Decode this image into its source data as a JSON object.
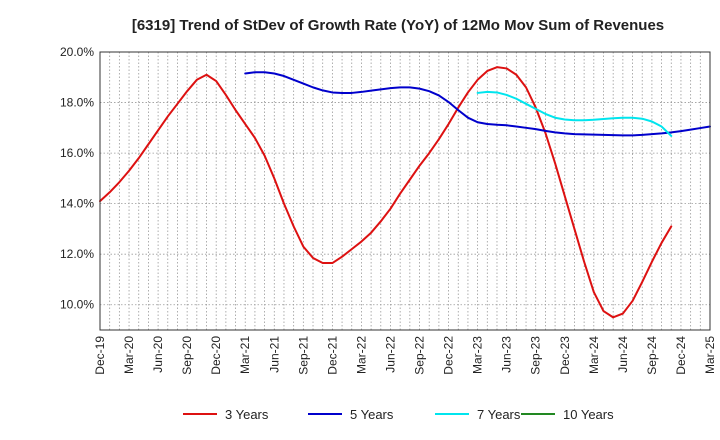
{
  "chart_data": {
    "type": "line",
    "title": "[6319]  Trend of StDev of Growth Rate (YoY) of 12Mo Mov Sum of Revenues",
    "xlabel": "",
    "ylabel": "",
    "ylim": [
      9.0,
      20.0
    ],
    "yticks": [
      10.0,
      12.0,
      14.0,
      16.0,
      18.0,
      20.0
    ],
    "ytick_labels": [
      "10.0%",
      "12.0%",
      "14.0%",
      "16.0%",
      "18.0%",
      "20.0%"
    ],
    "xtick_labels": [
      "Dec-19",
      "Mar-20",
      "Jun-20",
      "Sep-20",
      "Dec-20",
      "Mar-21",
      "Jun-21",
      "Sep-21",
      "Dec-21",
      "Mar-22",
      "Jun-22",
      "Sep-22",
      "Dec-22",
      "Mar-23",
      "Jun-23",
      "Sep-23",
      "Dec-23",
      "Mar-24",
      "Jun-24",
      "Sep-24",
      "Dec-24",
      "Mar-25"
    ],
    "grid": true,
    "legend_position": "bottom",
    "series": [
      {
        "name": "3 Years",
        "color": "#dd1111",
        "start_month": 0,
        "values": [
          14.1,
          14.45,
          14.85,
          15.3,
          15.8,
          16.35,
          16.9,
          17.45,
          17.95,
          18.45,
          18.9,
          19.1,
          18.85,
          18.3,
          17.7,
          17.15,
          16.6,
          15.9,
          15.0,
          14.0,
          13.1,
          12.3,
          11.85,
          11.65,
          11.65,
          11.9,
          12.2,
          12.5,
          12.85,
          13.3,
          13.8,
          14.4,
          14.95,
          15.5,
          16.0,
          16.55,
          17.15,
          17.8,
          18.4,
          18.9,
          19.25,
          19.4,
          19.35,
          19.1,
          18.6,
          17.8,
          16.8,
          15.6,
          14.3,
          13.0,
          11.7,
          10.5,
          9.75,
          9.5,
          9.65,
          10.15,
          10.9,
          11.7,
          12.45,
          13.1
        ]
      },
      {
        "name": "5 Years",
        "color": "#0000cc",
        "start_month": 15,
        "values": [
          19.15,
          19.2,
          19.2,
          19.15,
          19.05,
          18.9,
          18.75,
          18.6,
          18.48,
          18.4,
          18.38,
          18.38,
          18.42,
          18.47,
          18.52,
          18.57,
          18.6,
          18.6,
          18.55,
          18.45,
          18.28,
          18.02,
          17.7,
          17.4,
          17.22,
          17.15,
          17.12,
          17.1,
          17.05,
          17.0,
          16.95,
          16.88,
          16.82,
          16.78,
          16.75,
          16.74,
          16.73,
          16.72,
          16.71,
          16.7,
          16.7,
          16.72,
          16.75,
          16.78,
          16.82,
          16.87,
          16.93,
          16.99,
          17.05
        ]
      },
      {
        "name": "7 Years",
        "color": "#00e5ee",
        "start_month": 39,
        "values": [
          18.38,
          18.42,
          18.4,
          18.3,
          18.15,
          17.95,
          17.75,
          17.55,
          17.4,
          17.33,
          17.3,
          17.3,
          17.32,
          17.35,
          17.38,
          17.4,
          17.4,
          17.36,
          17.25,
          17.05,
          16.68
        ]
      },
      {
        "name": "10 Years",
        "color": "#228822",
        "start_month": 0,
        "values": []
      }
    ]
  }
}
